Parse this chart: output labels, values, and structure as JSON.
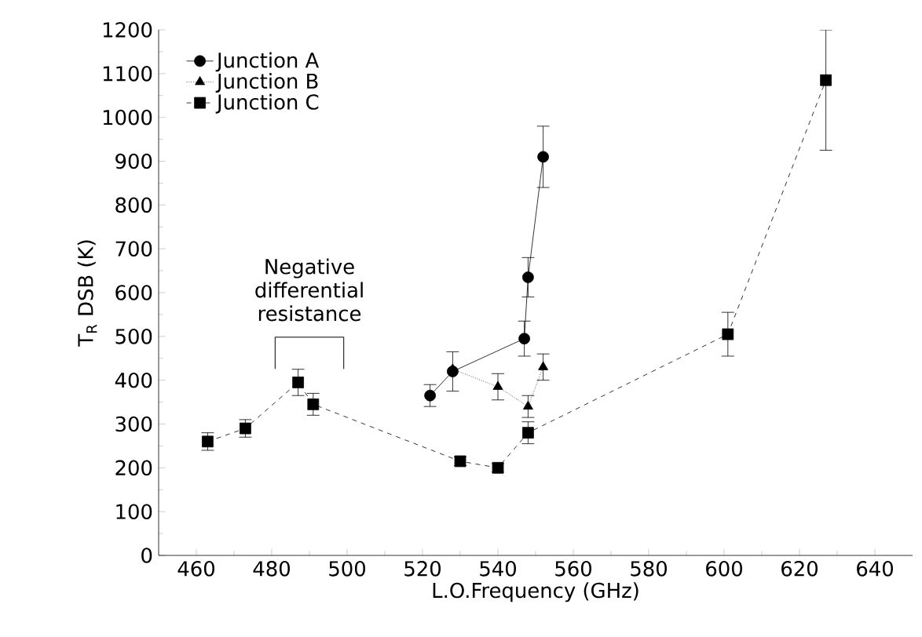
{
  "chart_data": {
    "type": "line",
    "xlabel": "L.O.Frequency (GHz)",
    "ylabel": "T$_{R}$ DSB (K)",
    "xlim": [
      450,
      650
    ],
    "xticks": [
      460,
      480,
      500,
      520,
      540,
      560,
      580,
      600,
      620,
      640
    ],
    "ylim": [
      0,
      1200
    ],
    "yticks": [
      0,
      100,
      200,
      300,
      400,
      500,
      600,
      700,
      800,
      900,
      1000,
      1100,
      1200
    ],
    "legend": "top left",
    "grid": false,
    "annotations": [
      {
        "text": "Negative differential resistance",
        "x": 490,
        "y": 425
      }
    ],
    "series": [
      {
        "name": "Junction A",
        "color": "#000000",
        "marker": "circle",
        "line_style": "solid",
        "x": [
          522,
          528,
          547,
          548,
          552
        ],
        "values": [
          365,
          420,
          495,
          635,
          910
        ],
        "errors": [
          25,
          45,
          40,
          45,
          70
        ]
      },
      {
        "name": "Junction B",
        "color": "#000000",
        "marker": "triangle",
        "line_style": "dotted",
        "x": [
          528,
          540,
          548,
          552
        ],
        "values": [
          425,
          385,
          340,
          430
        ],
        "errors": [
          null,
          30,
          25,
          30
        ]
      },
      {
        "name": "Junction C",
        "color": "#000000",
        "marker": "square",
        "line_style": "dashed",
        "x": [
          463,
          473,
          487,
          491,
          530,
          540,
          548,
          601,
          627
        ],
        "values": [
          260,
          290,
          395,
          345,
          215,
          200,
          280,
          505,
          1085
        ],
        "errors": [
          20,
          20,
          30,
          25,
          10,
          10,
          25,
          50,
          [
            925,
            1200
          ]
        ]
      }
    ]
  }
}
